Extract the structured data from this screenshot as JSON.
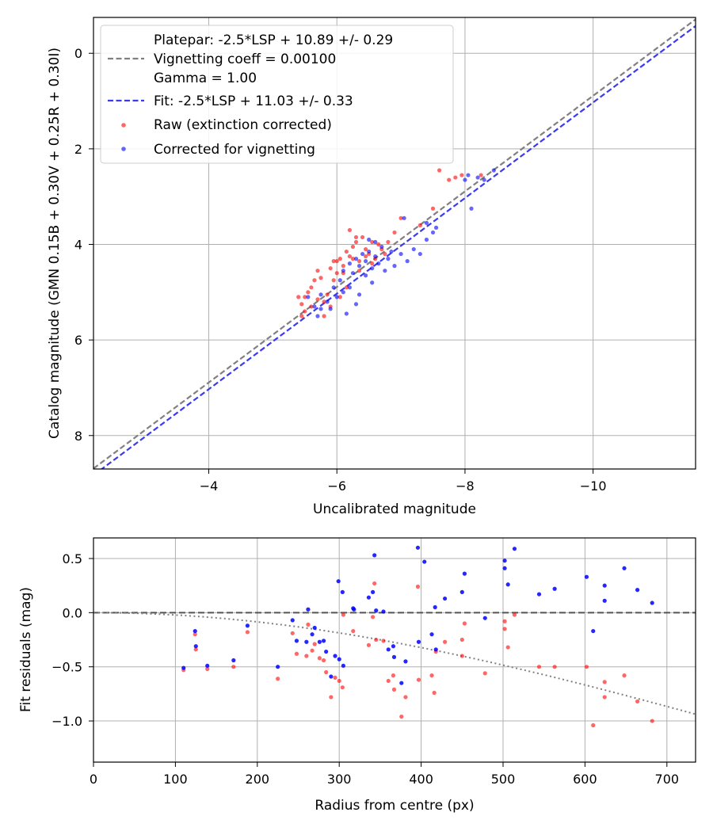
{
  "colors": {
    "raw": "#ff0000",
    "corrected": "#0000ff",
    "platepar_line": "#808080",
    "fit_line": "#3a3aee",
    "zero_line": "#555555",
    "vignetting_curve": "#808080",
    "grid": "#b0b0b0"
  },
  "chart_data": [
    {
      "type": "scatter",
      "title": "",
      "xlabel": "Uncalibrated magnitude",
      "ylabel": "Catalog magnitude (GMN 0.15B + 0.30V + 0.25R + 0.30I)",
      "xlim": [
        -2.2,
        -11.6
      ],
      "ylim": [
        8.7,
        -0.75
      ],
      "x_inverted": true,
      "y_inverted": true,
      "grid": true,
      "xticks": [
        -4,
        -6,
        -8,
        -10
      ],
      "xtick_labels": [
        "−4",
        "−6",
        "−8",
        "−10"
      ],
      "yticks": [
        0,
        2,
        4,
        6,
        8
      ],
      "ytick_labels": [
        "0",
        "2",
        "4",
        "6",
        "8"
      ],
      "legend_position": "top-left",
      "legend": [
        {
          "kind": "line",
          "style": "dashed",
          "color_key": "platepar_line",
          "lines": [
            "Platepar: -2.5*LSP + 10.89 +/- 0.29",
            "Vignetting coeff = 0.00100",
            "Gamma = 1.00"
          ]
        },
        {
          "kind": "line",
          "style": "dashed",
          "color_key": "fit_line",
          "lines": [
            "Fit: -2.5*LSP + 11.03 +/- 0.33"
          ]
        },
        {
          "kind": "marker",
          "color_key": "raw",
          "lines": [
            "Raw (extinction corrected)"
          ]
        },
        {
          "kind": "marker",
          "color_key": "corrected",
          "lines": [
            "Corrected for vignetting"
          ]
        }
      ],
      "lines": [
        {
          "name": "Platepar",
          "slope": 1,
          "intercept": 10.89,
          "color_key": "platepar_line",
          "style": "dashed"
        },
        {
          "name": "Fit",
          "slope": 1,
          "intercept": 11.03,
          "color_key": "fit_line",
          "style": "dashed"
        }
      ],
      "series": [
        {
          "name": "Raw (extinction corrected)",
          "color_key": "raw",
          "points": [
            [
              -5.4,
              5.1
            ],
            [
              -5.45,
              5.25
            ],
            [
              -5.5,
              5.1
            ],
            [
              -5.55,
              5.0
            ],
            [
              -5.6,
              4.9
            ],
            [
              -5.65,
              4.75
            ],
            [
              -5.7,
              4.55
            ],
            [
              -5.75,
              4.7
            ],
            [
              -5.8,
              5.2
            ],
            [
              -5.85,
              5.05
            ],
            [
              -5.9,
              4.5
            ],
            [
              -5.95,
              4.35
            ],
            [
              -6.0,
              4.6
            ],
            [
              -6.05,
              4.3
            ],
            [
              -6.1,
              4.45
            ],
            [
              -6.15,
              4.15
            ],
            [
              -6.2,
              4.25
            ],
            [
              -6.25,
              4.05
            ],
            [
              -6.3,
              3.95
            ],
            [
              -6.35,
              4.35
            ],
            [
              -6.4,
              3.85
            ],
            [
              -6.45,
              4.1
            ],
            [
              -6.5,
              4.2
            ],
            [
              -6.55,
              3.95
            ],
            [
              -6.6,
              4.3
            ],
            [
              -6.65,
              4.0
            ],
            [
              -6.7,
              4.1
            ],
            [
              -6.75,
              4.2
            ],
            [
              -6.8,
              3.95
            ],
            [
              -6.9,
              3.75
            ],
            [
              -6.2,
              3.7
            ],
            [
              -6.3,
              3.85
            ],
            [
              -6.0,
              4.35
            ],
            [
              -5.6,
              5.3
            ],
            [
              -5.5,
              5.4
            ],
            [
              -5.45,
              5.5
            ],
            [
              -5.7,
              5.15
            ],
            [
              -5.95,
              4.75
            ],
            [
              -6.1,
              4.6
            ],
            [
              -6.15,
              4.9
            ],
            [
              -6.35,
              4.55
            ],
            [
              -6.55,
              4.4
            ],
            [
              -6.25,
              4.3
            ],
            [
              -6.45,
              4.25
            ],
            [
              -7.0,
              3.45
            ],
            [
              -7.3,
              3.6
            ],
            [
              -7.5,
              3.25
            ],
            [
              -7.6,
              2.45
            ],
            [
              -7.75,
              2.65
            ],
            [
              -7.85,
              2.6
            ],
            [
              -7.95,
              2.55
            ],
            [
              -8.25,
              2.55
            ],
            [
              -5.8,
              5.5
            ],
            [
              -5.9,
              5.3
            ],
            [
              -6.05,
              5.1
            ]
          ]
        },
        {
          "name": "Corrected for vignetting",
          "color_key": "corrected",
          "points": [
            [
              -5.55,
              5.1
            ],
            [
              -5.65,
              5.3
            ],
            [
              -5.7,
              5.5
            ],
            [
              -5.75,
              5.05
            ],
            [
              -5.85,
              5.2
            ],
            [
              -5.95,
              4.9
            ],
            [
              -6.05,
              4.75
            ],
            [
              -6.1,
              4.55
            ],
            [
              -6.2,
              4.4
            ],
            [
              -6.25,
              4.6
            ],
            [
              -6.3,
              4.3
            ],
            [
              -6.35,
              4.45
            ],
            [
              -6.4,
              4.2
            ],
            [
              -6.45,
              4.35
            ],
            [
              -6.5,
              4.15
            ],
            [
              -6.55,
              4.5
            ],
            [
              -6.6,
              4.25
            ],
            [
              -6.65,
              4.4
            ],
            [
              -6.7,
              4.05
            ],
            [
              -6.75,
              4.55
            ],
            [
              -6.8,
              4.3
            ],
            [
              -6.85,
              4.15
            ],
            [
              -6.9,
              4.45
            ],
            [
              -7.0,
              4.2
            ],
            [
              -7.1,
              4.35
            ],
            [
              -7.2,
              4.1
            ],
            [
              -7.3,
              4.2
            ],
            [
              -7.4,
              3.9
            ],
            [
              -7.5,
              3.75
            ],
            [
              -7.55,
              3.65
            ],
            [
              -6.5,
              3.9
            ],
            [
              -6.6,
              3.95
            ],
            [
              -6.2,
              4.9
            ],
            [
              -6.0,
              5.1
            ],
            [
              -6.15,
              5.45
            ],
            [
              -5.9,
              5.35
            ],
            [
              -6.35,
              5.05
            ],
            [
              -6.55,
              4.8
            ],
            [
              -6.3,
              5.25
            ],
            [
              -6.45,
              4.65
            ],
            [
              -7.05,
              3.45
            ],
            [
              -7.4,
              3.55
            ],
            [
              -8.0,
              2.65
            ],
            [
              -8.05,
              2.55
            ],
            [
              -8.1,
              3.25
            ],
            [
              -8.2,
              2.6
            ],
            [
              -8.3,
              2.65
            ],
            [
              -8.45,
              2.45
            ],
            [
              -5.75,
              5.35
            ],
            [
              -6.1,
              5.0
            ]
          ]
        }
      ]
    },
    {
      "type": "scatter",
      "title": "",
      "xlabel": "Radius from centre (px)",
      "ylabel": "Fit residuals (mag)",
      "xlim": [
        0,
        735
      ],
      "ylim": [
        -1.38,
        0.69
      ],
      "grid": true,
      "xticks": [
        0,
        100,
        200,
        300,
        400,
        500,
        600,
        700
      ],
      "xtick_labels": [
        "0",
        "100",
        "200",
        "300",
        "400",
        "500",
        "600",
        "700"
      ],
      "yticks": [
        0.5,
        0.0,
        -0.5,
        -1.0
      ],
      "ytick_labels": [
        "0.5",
        "0.0",
        "−0.5",
        "−1.0"
      ],
      "zero_line": {
        "y": 0,
        "color_key": "zero_line",
        "style": "dashed"
      },
      "vignetting_curve": {
        "coeff": 0.001,
        "color_key": "vignetting_curve",
        "style": "dotted"
      },
      "series": [
        {
          "name": "Raw",
          "color_key": "raw",
          "points": [
            [
              110,
              -0.53
            ],
            [
              124,
              -0.2
            ],
            [
              125,
              -0.34
            ],
            [
              139,
              -0.52
            ],
            [
              171,
              -0.5
            ],
            [
              188,
              -0.18
            ],
            [
              225,
              -0.61
            ],
            [
              243,
              -0.19
            ],
            [
              248,
              -0.38
            ],
            [
              260,
              -0.4
            ],
            [
              262,
              -0.11
            ],
            [
              267,
              -0.35
            ],
            [
              270,
              -0.29
            ],
            [
              276,
              -0.42
            ],
            [
              281,
              -0.44
            ],
            [
              284,
              -0.55
            ],
            [
              290,
              -0.78
            ],
            [
              295,
              -0.6
            ],
            [
              300,
              -0.63
            ],
            [
              304,
              -0.69
            ],
            [
              305,
              -0.02
            ],
            [
              317,
              -0.17
            ],
            [
              336,
              -0.3
            ],
            [
              341,
              -0.04
            ],
            [
              343,
              0.27
            ],
            [
              345,
              -0.25
            ],
            [
              354,
              -0.26
            ],
            [
              360,
              -0.63
            ],
            [
              366,
              -0.58
            ],
            [
              367,
              -0.71
            ],
            [
              376,
              -0.96
            ],
            [
              381,
              -0.78
            ],
            [
              396,
              0.24
            ],
            [
              397,
              -0.62
            ],
            [
              413,
              -0.58
            ],
            [
              416,
              -0.74
            ],
            [
              418,
              -0.36
            ],
            [
              429,
              -0.27
            ],
            [
              450,
              -0.4
            ],
            [
              450,
              -0.25
            ],
            [
              453,
              -0.1
            ],
            [
              478,
              -0.56
            ],
            [
              502,
              -0.08
            ],
            [
              502,
              -0.15
            ],
            [
              506,
              -0.32
            ],
            [
              514,
              -0.02
            ],
            [
              544,
              -0.5
            ],
            [
              563,
              -0.5
            ],
            [
              602,
              -0.5
            ],
            [
              610,
              -1.04
            ],
            [
              624,
              -0.64
            ],
            [
              624,
              -0.78
            ],
            [
              648,
              -0.58
            ],
            [
              664,
              -0.82
            ],
            [
              682,
              -1.0
            ]
          ]
        },
        {
          "name": "Corrected",
          "color_key": "corrected",
          "points": [
            [
              110,
              -0.51
            ],
            [
              124,
              -0.17
            ],
            [
              125,
              -0.31
            ],
            [
              139,
              -0.49
            ],
            [
              171,
              -0.44
            ],
            [
              188,
              -0.12
            ],
            [
              225,
              -0.5
            ],
            [
              243,
              -0.07
            ],
            [
              248,
              -0.26
            ],
            [
              260,
              -0.27
            ],
            [
              262,
              0.03
            ],
            [
              267,
              -0.2
            ],
            [
              270,
              -0.14
            ],
            [
              276,
              -0.27
            ],
            [
              281,
              -0.26
            ],
            [
              284,
              -0.36
            ],
            [
              290,
              -0.59
            ],
            [
              295,
              -0.4
            ],
            [
              300,
              -0.43
            ],
            [
              299,
              0.29
            ],
            [
              304,
              0.19
            ],
            [
              305,
              -0.49
            ],
            [
              317,
              0.04
            ],
            [
              318,
              0.03
            ],
            [
              336,
              0.14
            ],
            [
              341,
              0.19
            ],
            [
              343,
              0.53
            ],
            [
              345,
              0.02
            ],
            [
              354,
              0.01
            ],
            [
              360,
              -0.34
            ],
            [
              366,
              -0.31
            ],
            [
              367,
              -0.41
            ],
            [
              376,
              -0.65
            ],
            [
              381,
              -0.45
            ],
            [
              396,
              0.6
            ],
            [
              397,
              -0.27
            ],
            [
              404,
              0.47
            ],
            [
              413,
              -0.2
            ],
            [
              417,
              0.05
            ],
            [
              418,
              -0.34
            ],
            [
              429,
              0.13
            ],
            [
              450,
              0.19
            ],
            [
              453,
              0.36
            ],
            [
              478,
              -0.05
            ],
            [
              502,
              0.48
            ],
            [
              502,
              0.41
            ],
            [
              506,
              0.26
            ],
            [
              514,
              0.59
            ],
            [
              544,
              0.17
            ],
            [
              563,
              0.22
            ],
            [
              602,
              0.33
            ],
            [
              610,
              -0.17
            ],
            [
              624,
              0.25
            ],
            [
              624,
              0.11
            ],
            [
              648,
              0.41
            ],
            [
              664,
              0.21
            ],
            [
              682,
              0.09
            ]
          ]
        }
      ]
    }
  ]
}
